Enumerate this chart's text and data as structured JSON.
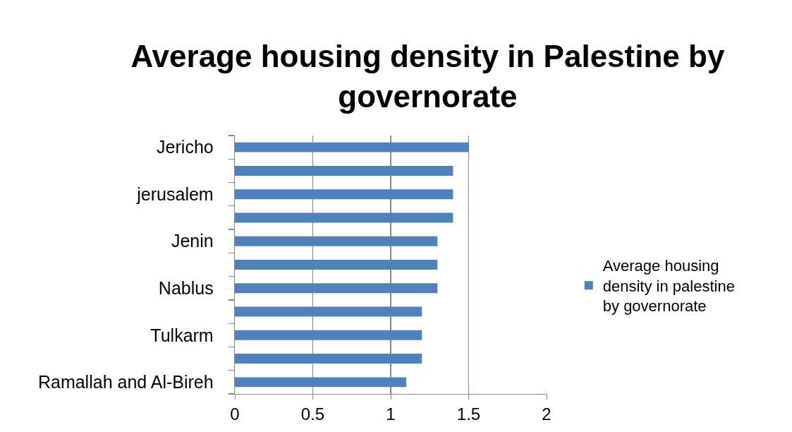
{
  "chart_data": {
    "type": "bar",
    "orientation": "horizontal",
    "title": "Average housing density in Palestine by governorate",
    "categories": [
      "Jericho",
      null,
      "jerusalem",
      null,
      "Jenin",
      null,
      "Nablus",
      null,
      "Tulkarm",
      null,
      "Ramallah and Al-Bireh"
    ],
    "series": [
      {
        "name": "Average housing density in palestine by governorate",
        "color": "#4f81bd",
        "values": [
          1.5,
          1.4,
          1.4,
          1.4,
          1.3,
          1.3,
          1.3,
          1.2,
          1.2,
          1.2,
          1.1
        ]
      }
    ],
    "xlim": [
      0,
      2
    ],
    "xticks": [
      0,
      0.5,
      1,
      1.5,
      2
    ],
    "grid": "x",
    "legend": "right"
  }
}
